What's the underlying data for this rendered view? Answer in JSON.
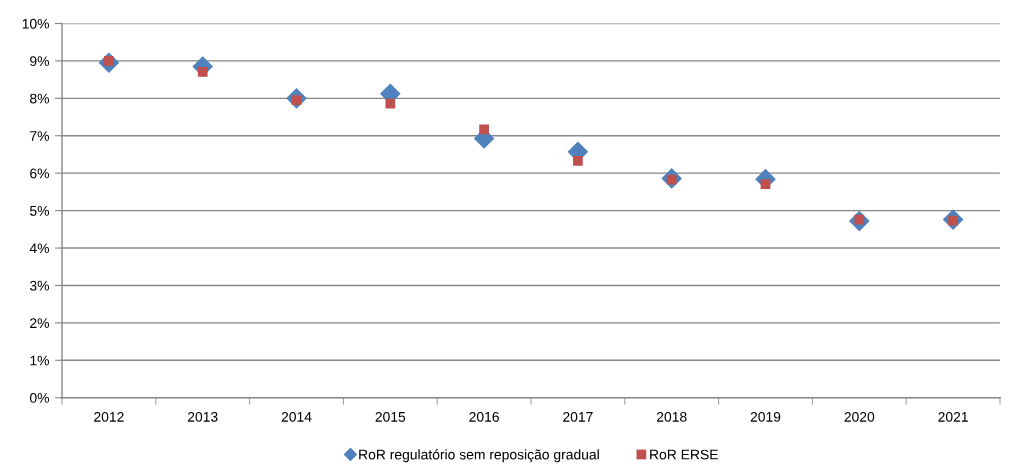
{
  "chart_data": {
    "type": "scatter",
    "categories": [
      "2012",
      "2013",
      "2014",
      "2015",
      "2016",
      "2017",
      "2018",
      "2019",
      "2020",
      "2021"
    ],
    "series": [
      {
        "name": "RoR regulatório sem reposição gradual",
        "color": "#4f81bd",
        "marker": "diamond",
        "values": [
          8.95,
          8.85,
          8.0,
          8.12,
          6.93,
          6.57,
          5.86,
          5.84,
          4.72,
          4.76
        ]
      },
      {
        "name": "RoR ERSE",
        "color": "#c0504d",
        "marker": "square",
        "values": [
          9.0,
          8.71,
          7.95,
          7.86,
          7.17,
          6.33,
          5.83,
          5.71,
          4.76,
          4.73
        ]
      }
    ],
    "ylim": [
      0,
      10
    ],
    "yticks": [
      {
        "value": 0,
        "label": "0%"
      },
      {
        "value": 1,
        "label": "1%"
      },
      {
        "value": 2,
        "label": "2%"
      },
      {
        "value": 3,
        "label": "3%"
      },
      {
        "value": 4,
        "label": "4%"
      },
      {
        "value": 5,
        "label": "5%"
      },
      {
        "value": 6,
        "label": "6%"
      },
      {
        "value": 7,
        "label": "7%"
      },
      {
        "value": 8,
        "label": "8%"
      },
      {
        "value": 9,
        "label": "9%"
      },
      {
        "value": 10,
        "label": "10%"
      }
    ],
    "grid": "y",
    "legend": "bottom"
  }
}
